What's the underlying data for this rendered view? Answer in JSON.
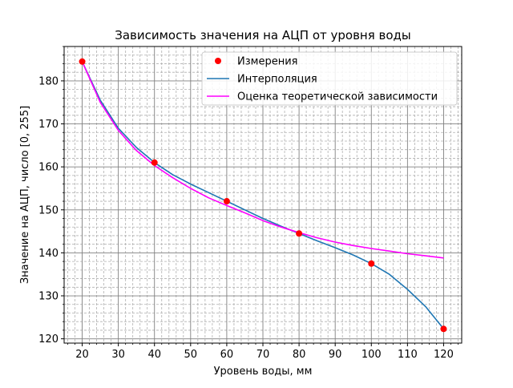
{
  "chart_data": {
    "type": "line",
    "title": "Зависимость значения на АЦП от уровня воды",
    "xlabel": "Уровень воды, мм",
    "ylabel": "Значение на АЦП, число [0, 255]",
    "xlim": [
      15,
      125
    ],
    "ylim": [
      119,
      188
    ],
    "x_ticks": [
      20,
      30,
      40,
      50,
      60,
      70,
      80,
      90,
      100,
      110,
      120
    ],
    "y_ticks": [
      120,
      130,
      140,
      150,
      160,
      170,
      180
    ],
    "grid": true,
    "minor_grid": true,
    "legend_position": "top-right",
    "series": [
      {
        "name": "Измерения",
        "kind": "scatter",
        "color": "#ff0000",
        "x": [
          20,
          40,
          60,
          80,
          100,
          120
        ],
        "y": [
          184.5,
          161.0,
          152.0,
          144.5,
          137.5,
          122.3
        ]
      },
      {
        "name": "Интерполяция",
        "kind": "line",
        "color": "#1f77b4",
        "x": [
          20,
          25,
          30,
          35,
          40,
          45,
          50,
          55,
          60,
          65,
          70,
          75,
          80,
          85,
          90,
          95,
          100,
          105,
          110,
          115,
          120
        ],
        "y": [
          184.5,
          175.5,
          169.0,
          164.5,
          161.0,
          158.2,
          156.0,
          154.0,
          152.0,
          150.0,
          148.0,
          146.2,
          144.5,
          142.8,
          141.2,
          139.5,
          137.5,
          135.0,
          131.5,
          127.5,
          122.3
        ]
      },
      {
        "name": "Оценка теоретической зависимости",
        "kind": "line",
        "color": "#ff00ff",
        "x": [
          20,
          25,
          30,
          35,
          40,
          45,
          50,
          55,
          60,
          65,
          70,
          75,
          80,
          85,
          90,
          95,
          100,
          105,
          110,
          115,
          120
        ],
        "y": [
          184.5,
          175.0,
          168.5,
          163.8,
          160.3,
          157.5,
          155.0,
          152.8,
          151.0,
          149.3,
          147.5,
          146.0,
          144.7,
          143.5,
          142.5,
          141.7,
          141.0,
          140.4,
          139.8,
          139.3,
          138.8
        ]
      }
    ]
  }
}
